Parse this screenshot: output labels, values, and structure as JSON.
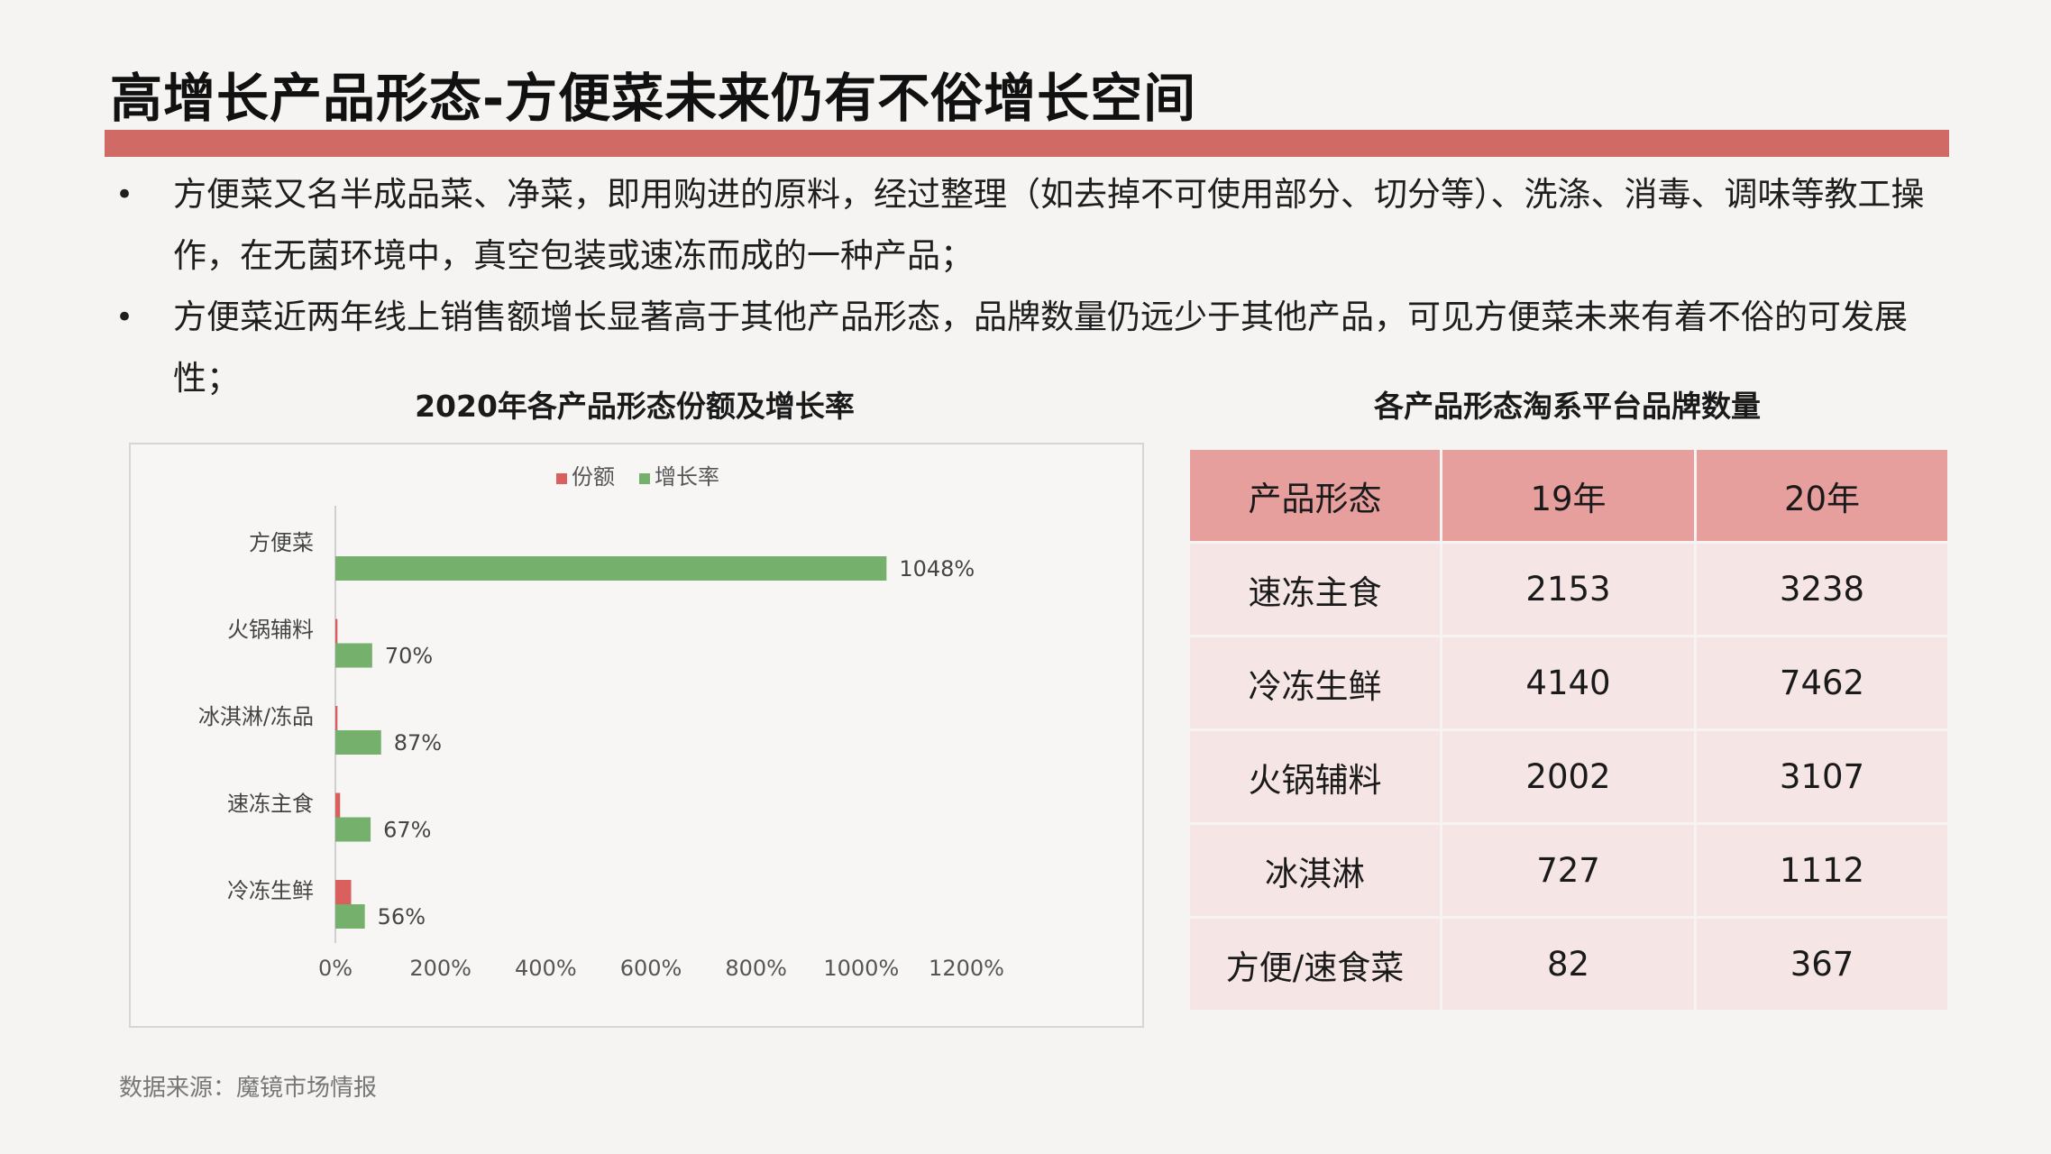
{
  "page": {
    "title": "高增长产品形态-方便菜未来仍有不俗增长空间",
    "bullets": [
      "方便菜又名半成品菜、净菜，即用购进的原料，经过整理（如去掉不可使用部分、切分等）、洗涤、消毒、调味等教工操作，在无菌环境中，真空包装或速冻而成的一种产品；",
      "方便菜近两年线上销售额增长显著高于其他产品形态，品牌数量仍远少于其他产品，可见方便菜未来有着不俗的可发展性；"
    ],
    "bullet_marker": "•",
    "source": "数据来源：魔镜市场情报",
    "accent_color": "#cf6a64"
  },
  "chart_data": [
    {
      "type": "bar",
      "orientation": "horizontal",
      "title": "2020年各产品形态份额及增长率",
      "categories": [
        "方便菜",
        "火锅辅料",
        "冰淇淋/冻品",
        "速冻主食",
        "冷冻生鲜"
      ],
      "series": [
        {
          "name": "份额",
          "color": "#d9605e",
          "values": [
            0,
            4,
            4,
            9,
            30
          ]
        },
        {
          "name": "增长率",
          "color": "#76b06d",
          "values": [
            1048,
            70,
            87,
            67,
            56
          ]
        }
      ],
      "data_labels": [
        "1048%",
        "70%",
        "87%",
        "67%",
        "56%"
      ],
      "x_ticks": [
        "0%",
        "200%",
        "400%",
        "600%",
        "800%",
        "1000%",
        "1200%"
      ],
      "xlim": [
        0,
        1200
      ],
      "xlabel": "",
      "ylabel": "",
      "legend": "top-center",
      "grid": false
    },
    {
      "type": "table",
      "title": "各产品形态淘系平台品牌数量",
      "columns": [
        "产品形态",
        "19年",
        "20年"
      ],
      "rows": [
        [
          "速冻主食",
          "2153",
          "3238"
        ],
        [
          "冷冻生鲜",
          "4140",
          "7462"
        ],
        [
          "火锅辅料",
          "2002",
          "3107"
        ],
        [
          "冰淇淋",
          "727",
          "1112"
        ],
        [
          "方便/速食菜",
          "82",
          "367"
        ]
      ],
      "header_color": "#e69f9d",
      "cell_color": "#f5e5e5"
    }
  ]
}
